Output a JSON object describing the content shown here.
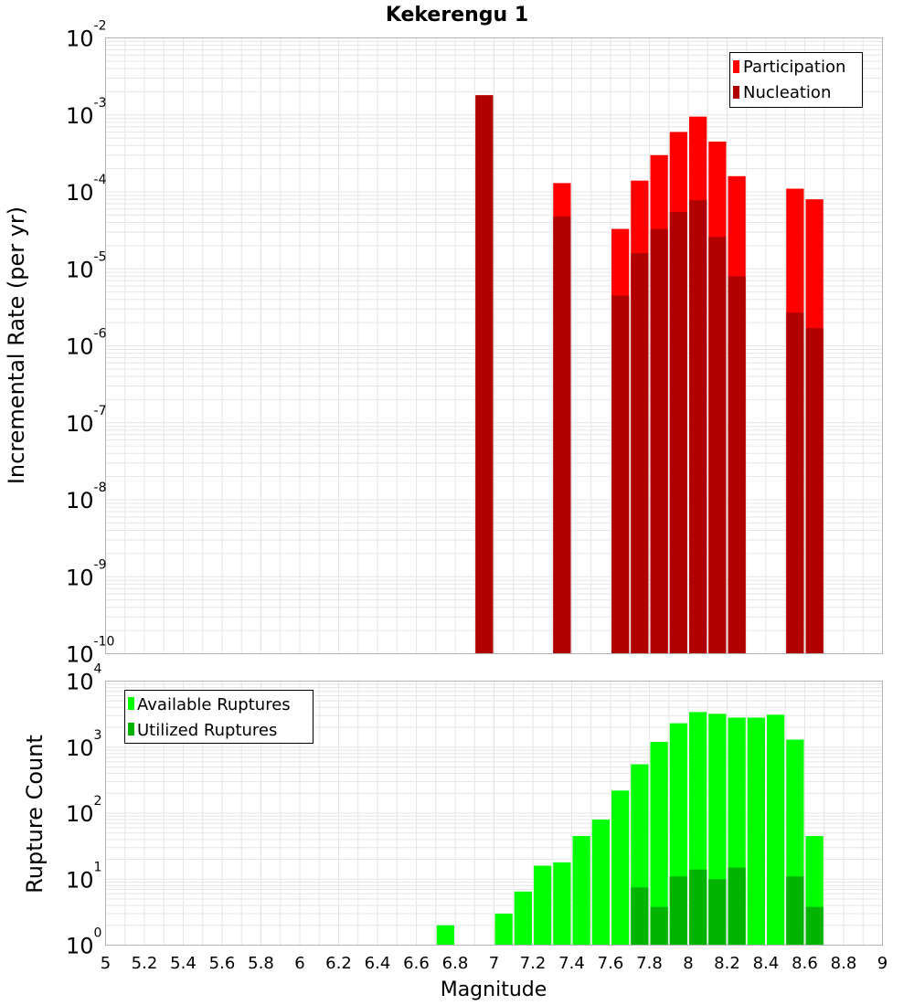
{
  "chart_data": [
    {
      "type": "bar",
      "title": "Kekerengu 1",
      "xlabel": "Magnitude",
      "ylabel": "Incremental Rate (per yr)",
      "yscale": "log",
      "ylim_exp": [
        -10,
        -2
      ],
      "xlim": [
        5,
        9
      ],
      "bin_width": 0.1,
      "legend_position": "top-right",
      "legend": [
        "Participation",
        "Nucleation"
      ],
      "series": [
        {
          "name": "Participation",
          "color": "#ff0000",
          "points": [
            [
              6.95,
              0.0018
            ],
            [
              7.35,
              0.00013
            ],
            [
              7.65,
              3.3e-05
            ],
            [
              7.75,
              0.00014
            ],
            [
              7.85,
              0.0003
            ],
            [
              7.95,
              0.0006
            ],
            [
              8.05,
              0.00095
            ],
            [
              8.15,
              0.00045
            ],
            [
              8.25,
              0.00016
            ],
            [
              8.55,
              0.00011
            ],
            [
              8.65,
              8e-05
            ]
          ]
        },
        {
          "name": "Nucleation",
          "color": "#b00000",
          "points": [
            [
              6.95,
              0.0018
            ],
            [
              7.35,
              4.8e-05
            ],
            [
              7.65,
              4.5e-06
            ],
            [
              7.75,
              1.6e-05
            ],
            [
              7.85,
              3.3e-05
            ],
            [
              7.95,
              5.5e-05
            ],
            [
              8.05,
              7.8e-05
            ],
            [
              8.15,
              2.6e-05
            ],
            [
              8.25,
              8e-06
            ],
            [
              8.55,
              2.7e-06
            ],
            [
              8.65,
              1.7e-06
            ]
          ]
        }
      ]
    },
    {
      "type": "bar",
      "title": "",
      "xlabel": "Magnitude",
      "ylabel": "Rupture Count",
      "yscale": "log",
      "ylim_exp": [
        0,
        4
      ],
      "xlim": [
        5,
        9
      ],
      "bin_width": 0.1,
      "legend_position": "top-left",
      "legend": [
        "Available Ruptures",
        "Utilized Ruptures"
      ],
      "series": [
        {
          "name": "Available Ruptures",
          "color": "#00ff00",
          "points": [
            [
              6.75,
              2
            ],
            [
              6.95,
              1
            ],
            [
              7.05,
              3
            ],
            [
              7.15,
              6.5
            ],
            [
              7.25,
              16
            ],
            [
              7.35,
              18
            ],
            [
              7.45,
              45
            ],
            [
              7.55,
              80
            ],
            [
              7.65,
              220
            ],
            [
              7.75,
              550
            ],
            [
              7.85,
              1200
            ],
            [
              7.95,
              2300
            ],
            [
              8.05,
              3400
            ],
            [
              8.15,
              3200
            ],
            [
              8.25,
              2800
            ],
            [
              8.35,
              2800
            ],
            [
              8.45,
              3100
            ],
            [
              8.55,
              1300
            ],
            [
              8.65,
              45
            ]
          ]
        },
        {
          "name": "Utilized Ruptures",
          "color": "#00b400",
          "points": [
            [
              6.95,
              1
            ],
            [
              7.35,
              1
            ],
            [
              7.65,
              1
            ],
            [
              7.75,
              7.5
            ],
            [
              7.85,
              3.8
            ],
            [
              7.95,
              11
            ],
            [
              8.05,
              14
            ],
            [
              8.15,
              10
            ],
            [
              8.25,
              15
            ],
            [
              8.55,
              11
            ],
            [
              8.65,
              3.8
            ]
          ]
        }
      ]
    }
  ],
  "x_ticks": [
    "5",
    "5.2",
    "5.4",
    "5.6",
    "5.8",
    "6",
    "6.2",
    "6.4",
    "6.6",
    "6.8",
    "7",
    "7.2",
    "7.4",
    "7.6",
    "7.8",
    "8",
    "8.2",
    "8.4",
    "8.6",
    "8.8",
    "9"
  ],
  "top_y_ticks": [
    "-10",
    "-9",
    "-8",
    "-7",
    "-6",
    "-5",
    "-4",
    "-3",
    "-2"
  ],
  "bottom_y_ticks": [
    "0",
    "1",
    "2",
    "3",
    "4"
  ],
  "y_tick_base": "10",
  "colors": {
    "grid": "#e6e6e6",
    "frame": "#b4b4b4"
  }
}
